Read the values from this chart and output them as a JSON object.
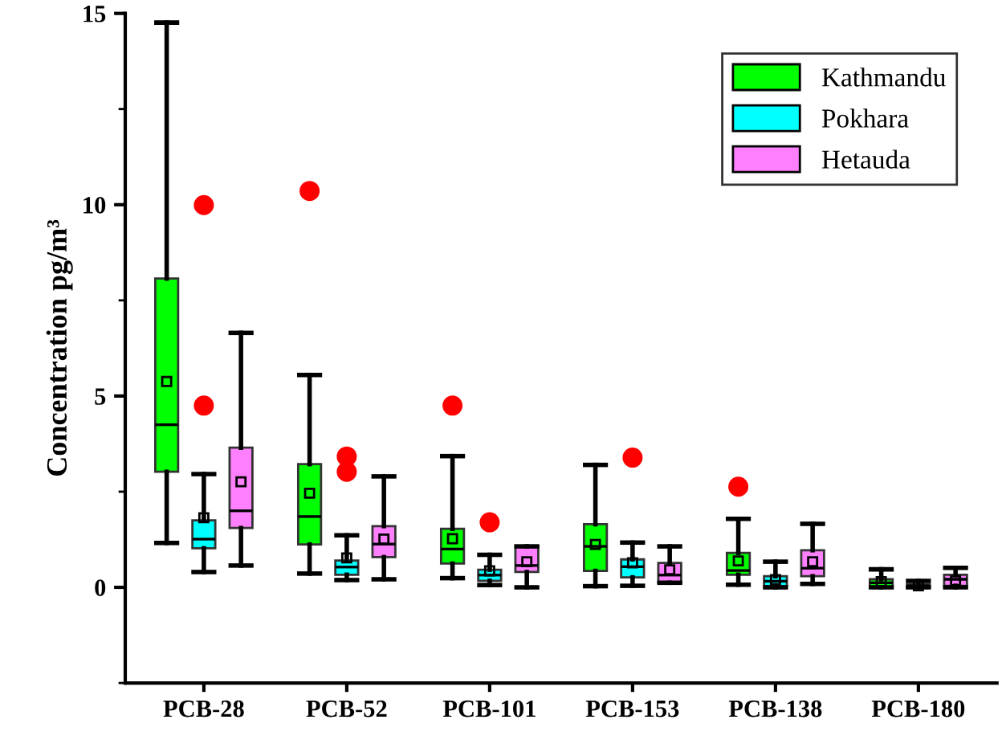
{
  "chart_data": {
    "type": "box",
    "ylabel": "Concentration pg/m³",
    "categories": [
      "PCB-28",
      "PCB-52",
      "PCB-101",
      "PCB-153",
      "PCB-138",
      "PCB-180"
    ],
    "ylim": [
      -2.5,
      15
    ],
    "yticks": [
      0,
      5,
      10,
      15
    ],
    "grid": false,
    "legend": "top right",
    "series": [
      {
        "name": "Kathmandu",
        "color": "#00ff00",
        "boxes": [
          {
            "low": 1.16,
            "q1": 3.02,
            "median": 4.25,
            "q3": 8.07,
            "high": 14.76,
            "mean": 5.38
          },
          {
            "low": 0.36,
            "q1": 1.12,
            "median": 1.85,
            "q3": 3.22,
            "high": 5.55,
            "mean": 2.46,
            "outliers": [
              10.36
            ]
          },
          {
            "low": 0.24,
            "q1": 0.62,
            "median": 1.0,
            "q3": 1.53,
            "high": 3.43,
            "mean": 1.27,
            "outliers": [
              4.75
            ]
          },
          {
            "low": 0.03,
            "q1": 0.43,
            "median": 1.07,
            "q3": 1.65,
            "high": 3.2,
            "mean": 1.12
          },
          {
            "low": 0.07,
            "q1": 0.33,
            "median": 0.44,
            "q3": 0.9,
            "high": 1.79,
            "mean": 0.69,
            "outliers": [
              2.63
            ]
          },
          {
            "low": 0.0,
            "q1": 0.0,
            "median": 0.12,
            "q3": 0.21,
            "high": 0.47,
            "mean": 0.15
          }
        ]
      },
      {
        "name": "Pokhara",
        "color": "#00ffff",
        "boxes": [
          {
            "low": 0.4,
            "q1": 1.02,
            "median": 1.26,
            "q3": 1.75,
            "high": 2.96,
            "mean": 1.82,
            "outliers": [
              9.99,
              4.75
            ]
          },
          {
            "low": 0.19,
            "q1": 0.33,
            "median": 0.53,
            "q3": 0.7,
            "high": 1.36,
            "mean": 0.77,
            "outliers": [
              3.42,
              3.02
            ]
          },
          {
            "low": 0.06,
            "q1": 0.17,
            "median": 0.32,
            "q3": 0.46,
            "high": 0.85,
            "mean": 0.43,
            "outliers": [
              1.7
            ]
          },
          {
            "low": 0.04,
            "q1": 0.26,
            "median": 0.54,
            "q3": 0.73,
            "high": 1.17,
            "mean": 0.64,
            "outliers": [
              3.39
            ]
          },
          {
            "low": 0.0,
            "q1": 0.03,
            "median": 0.16,
            "q3": 0.29,
            "high": 0.67,
            "mean": 0.2
          },
          {
            "low": 0.0,
            "q1": 0.0,
            "median": 0.04,
            "q3": 0.08,
            "high": 0.17,
            "mean": 0.04
          }
        ]
      },
      {
        "name": "Hetauda",
        "color": "#ff80ff",
        "boxes": [
          {
            "low": 0.57,
            "q1": 1.55,
            "median": 2.0,
            "q3": 3.65,
            "high": 6.65,
            "mean": 2.76
          },
          {
            "low": 0.21,
            "q1": 0.79,
            "median": 1.13,
            "q3": 1.6,
            "high": 2.9,
            "mean": 1.26
          },
          {
            "low": 0.0,
            "q1": 0.4,
            "median": 0.57,
            "q3": 1.07,
            "high": 1.07,
            "mean": 0.67
          },
          {
            "low": 0.12,
            "q1": 0.12,
            "median": 0.32,
            "q3": 0.64,
            "high": 1.07,
            "mean": 0.46
          },
          {
            "low": 0.09,
            "q1": 0.29,
            "median": 0.5,
            "q3": 0.97,
            "high": 1.66,
            "mean": 0.67
          },
          {
            "low": 0.0,
            "q1": 0.04,
            "median": 0.21,
            "q3": 0.33,
            "high": 0.51,
            "mean": 0.17
          }
        ]
      }
    ]
  }
}
